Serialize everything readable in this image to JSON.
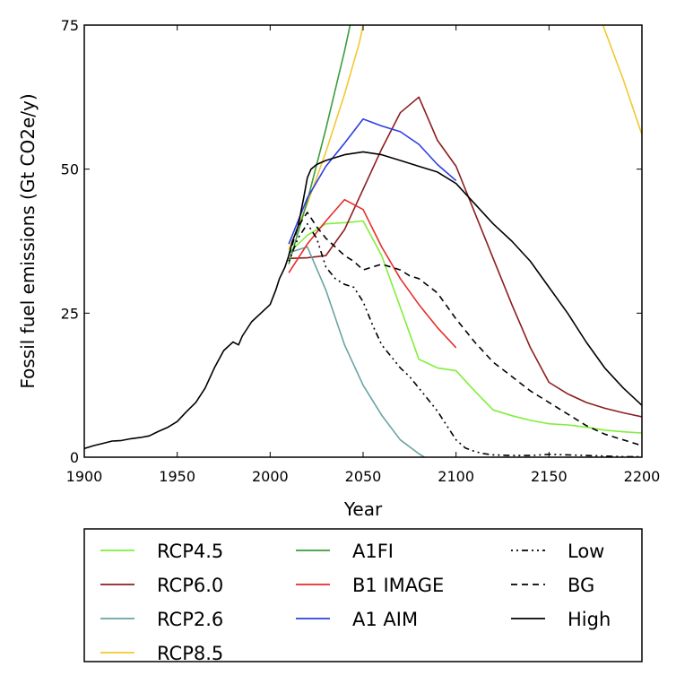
{
  "chart_data": {
    "type": "line",
    "xlabel": "Year",
    "ylabel": "Fossil fuel emissions (Gt CO2e/y)",
    "xlim": [
      1900,
      2200
    ],
    "ylim": [
      0,
      75
    ],
    "xticks": [
      1900,
      1950,
      2000,
      2050,
      2100,
      2150,
      2200
    ],
    "yticks": [
      0,
      25,
      50,
      75
    ],
    "grid": false,
    "legend_position": "below plot, 3 columns",
    "series": [
      {
        "name": "RCP4.5",
        "color": "#80ef3a",
        "dash": "solid",
        "x": [
          2010,
          2020,
          2030,
          2040,
          2050,
          2060,
          2070,
          2080,
          2090,
          2100,
          2110,
          2120,
          2130,
          2140,
          2150,
          2160,
          2170,
          2180,
          2190,
          2200
        ],
        "y": [
          35.5,
          38.5,
          40.5,
          40.7,
          41,
          35,
          26,
          17,
          15.5,
          15,
          11.5,
          8.2,
          7.2,
          6.4,
          5.8,
          5.6,
          5.2,
          4.7,
          4.4,
          4.2
        ]
      },
      {
        "name": "RCP6.0",
        "color": "#8b1e1e",
        "dash": "solid",
        "x": [
          2010,
          2020,
          2030,
          2040,
          2050,
          2060,
          2070,
          2080,
          2090,
          2100,
          2110,
          2120,
          2130,
          2140,
          2150,
          2160,
          2170,
          2180,
          2190,
          2200
        ],
        "y": [
          34.5,
          34.6,
          35,
          39.5,
          46.5,
          53.5,
          59.8,
          62.5,
          55,
          50.5,
          42.5,
          34.5,
          26.5,
          19,
          13,
          11,
          9.5,
          8.5,
          7.7,
          7
        ]
      },
      {
        "name": "RCP2.6",
        "color": "#6aa3a3",
        "dash": "solid",
        "x": [
          2010,
          2020,
          2030,
          2040,
          2050,
          2060,
          2070,
          2080,
          2083
        ],
        "y": [
          35.5,
          36.5,
          29,
          19.5,
          12.5,
          7.3,
          3,
          0.6,
          0
        ]
      },
      {
        "name": "RCP8.5",
        "color": "#f2c82f",
        "dash": "solid",
        "x": [
          2010,
          2020,
          2030,
          2040,
          2048,
          2050
        ],
        "y": [
          36,
          44,
          53,
          63,
          72,
          75
        ]
      },
      {
        "name": "RCP8.5",
        "color": "#f2c82f",
        "dash": "solid",
        "x": [
          2179,
          2190,
          2200
        ],
        "y": [
          75,
          65.5,
          56
        ]
      },
      {
        "name": "A1FI",
        "color": "#3c9c3c",
        "dash": "solid",
        "x": [
          2010,
          2020,
          2030,
          2040,
          2043
        ],
        "y": [
          33.5,
          44.5,
          57,
          70.5,
          75
        ]
      },
      {
        "name": "B1 IMAGE",
        "color": "#e82c2c",
        "dash": "solid",
        "x": [
          2010,
          2020,
          2030,
          2040,
          2050,
          2060,
          2070,
          2080,
          2090,
          2100
        ],
        "y": [
          32,
          37,
          41,
          44.7,
          43,
          36.5,
          31,
          26.5,
          22.5,
          19
        ]
      },
      {
        "name": "A1 AIM",
        "color": "#2e3ee0",
        "dash": "solid",
        "x": [
          2010,
          2020,
          2030,
          2040,
          2050,
          2060,
          2070,
          2080,
          2090,
          2100
        ],
        "y": [
          37,
          45,
          50.5,
          54.5,
          58.7,
          57.5,
          56.5,
          54.3,
          50.8,
          48
        ]
      },
      {
        "name": "Low",
        "color": "#000000",
        "dash": "dotdash",
        "x": [
          2010,
          2015,
          2020,
          2025,
          2030,
          2035,
          2040,
          2045,
          2050,
          2055,
          2060,
          2065,
          2070,
          2075,
          2080,
          2085,
          2090,
          2095,
          2100,
          2105,
          2110,
          2115,
          2120,
          2130,
          2140,
          2150,
          2160,
          2170,
          2180,
          2190,
          2200
        ],
        "y": [
          34,
          38,
          40.5,
          38,
          33,
          31,
          30,
          29.5,
          27,
          23,
          19.5,
          17.5,
          15.5,
          14,
          12,
          10,
          8,
          5.5,
          3,
          1.6,
          1,
          0.6,
          0.4,
          0.3,
          0.3,
          0.5,
          0.4,
          0.3,
          0.2,
          0.1,
          0.1
        ]
      },
      {
        "name": "BG",
        "color": "#000000",
        "dash": "dash",
        "x": [
          2010,
          2015,
          2020,
          2025,
          2030,
          2035,
          2040,
          2045,
          2050,
          2055,
          2060,
          2065,
          2070,
          2075,
          2080,
          2090,
          2100,
          2110,
          2120,
          2130,
          2140,
          2150,
          2160,
          2170,
          2180,
          2190,
          2200
        ],
        "y": [
          35,
          40,
          42.5,
          40,
          38,
          36.5,
          35,
          34,
          32.5,
          33,
          33.5,
          33,
          32.5,
          31.5,
          31,
          28.5,
          24,
          20,
          16.5,
          14,
          11.5,
          9.5,
          7.5,
          5.5,
          4,
          3,
          2
        ]
      },
      {
        "name": "High",
        "color": "#000000",
        "dash": "solid",
        "x": [
          1900,
          1905,
          1910,
          1915,
          1920,
          1925,
          1930,
          1935,
          1940,
          1945,
          1950,
          1955,
          1960,
          1965,
          1970,
          1975,
          1980,
          1983,
          1985,
          1990,
          1995,
          2000,
          2003,
          2005,
          2008,
          2010,
          2012,
          2015,
          2018,
          2020,
          2022,
          2025,
          2030,
          2040,
          2050,
          2060,
          2070,
          2080,
          2090,
          2100,
          2110,
          2120,
          2130,
          2140,
          2150,
          2160,
          2170,
          2180,
          2190,
          2200
        ],
        "y": [
          1.5,
          2,
          2.4,
          2.8,
          2.9,
          3.2,
          3.4,
          3.7,
          4.5,
          5.2,
          6.2,
          7.9,
          9.5,
          12,
          15.5,
          18.5,
          20,
          19.5,
          21,
          23.5,
          25,
          26.5,
          29,
          31,
          33,
          35,
          37.5,
          40,
          45,
          48.5,
          50,
          50.8,
          51.5,
          52.5,
          53,
          52.5,
          51.5,
          50.5,
          49.5,
          47.5,
          44,
          40.5,
          37.5,
          34,
          29.5,
          25,
          20,
          15.5,
          12,
          9
        ]
      }
    ],
    "legend": [
      {
        "label": "RCP4.5",
        "color": "#80ef3a",
        "dash": "solid"
      },
      {
        "label": "RCP6.0",
        "color": "#8b1e1e",
        "dash": "solid"
      },
      {
        "label": "RCP2.6",
        "color": "#6aa3a3",
        "dash": "solid"
      },
      {
        "label": "RCP8.5",
        "color": "#f2c82f",
        "dash": "solid"
      },
      {
        "label": "A1FI",
        "color": "#3c9c3c",
        "dash": "solid"
      },
      {
        "label": "B1 IMAGE",
        "color": "#e82c2c",
        "dash": "solid"
      },
      {
        "label": "A1 AIM",
        "color": "#2e3ee0",
        "dash": "solid"
      },
      {
        "label": "Low",
        "color": "#000000",
        "dash": "dotdash"
      },
      {
        "label": "BG",
        "color": "#000000",
        "dash": "dash"
      },
      {
        "label": "High",
        "color": "#000000",
        "dash": "solid"
      }
    ]
  }
}
